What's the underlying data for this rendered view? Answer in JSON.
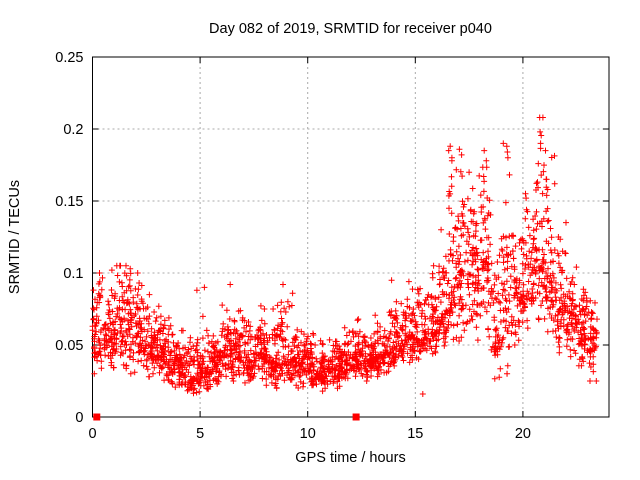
{
  "title": "Day 082 of 2019, SRMTID for receiver p040",
  "colors": {
    "marker": "#ff0000",
    "grid": "#a9a9a9",
    "axis": "#000000",
    "background": "#ffffff"
  },
  "chart_data": {
    "type": "scatter",
    "title": "Day 082 of 2019, SRMTID for receiver p040",
    "xlabel": "GPS time / hours",
    "ylabel": "SRMTID / TECUs",
    "xlim": [
      0,
      24
    ],
    "ylim": [
      0,
      0.25
    ],
    "x_ticks": [
      0,
      5,
      10,
      15,
      20
    ],
    "x_tick_labels": [
      "0",
      "5",
      "10",
      "15",
      "20"
    ],
    "y_ticks": [
      0,
      0.05,
      0.1,
      0.15,
      0.2,
      0.25
    ],
    "y_tick_labels": [
      "0",
      "0.05",
      "0.1",
      "0.15",
      "0.2",
      "0.25"
    ],
    "grid": true,
    "legend": "none",
    "series": [
      {
        "name": "srmtid-plus-markers",
        "marker": "plus",
        "color": "#ff0000",
        "density_bins": [
          [
            0.0,
            0.5,
            55,
            0.03,
            0.05,
            0.1
          ],
          [
            0.5,
            1.0,
            55,
            0.03,
            0.055,
            0.095
          ],
          [
            1.0,
            1.5,
            55,
            0.035,
            0.06,
            0.105
          ],
          [
            1.5,
            2.0,
            55,
            0.03,
            0.06,
            0.105
          ],
          [
            2.0,
            2.5,
            55,
            0.03,
            0.055,
            0.1
          ],
          [
            2.5,
            3.0,
            55,
            0.028,
            0.05,
            0.085
          ],
          [
            3.0,
            3.5,
            55,
            0.025,
            0.045,
            0.08
          ],
          [
            3.5,
            4.0,
            55,
            0.02,
            0.04,
            0.07
          ],
          [
            4.0,
            4.5,
            55,
            0.015,
            0.033,
            0.06
          ],
          [
            4.5,
            5.0,
            55,
            0.012,
            0.028,
            0.055
          ],
          [
            5.0,
            5.5,
            55,
            0.012,
            0.035,
            0.07
          ],
          [
            5.5,
            6.0,
            55,
            0.02,
            0.038,
            0.065
          ],
          [
            6.0,
            6.5,
            55,
            0.025,
            0.045,
            0.08
          ],
          [
            6.5,
            7.0,
            55,
            0.025,
            0.045,
            0.085
          ],
          [
            7.0,
            7.5,
            55,
            0.022,
            0.04,
            0.07
          ],
          [
            7.5,
            8.0,
            55,
            0.025,
            0.045,
            0.08
          ],
          [
            8.0,
            8.5,
            55,
            0.022,
            0.04,
            0.075
          ],
          [
            8.5,
            9.0,
            55,
            0.02,
            0.04,
            0.09
          ],
          [
            9.0,
            9.5,
            55,
            0.022,
            0.04,
            0.08
          ],
          [
            9.5,
            10.0,
            55,
            0.02,
            0.038,
            0.065
          ],
          [
            10.0,
            10.5,
            55,
            0.018,
            0.034,
            0.058
          ],
          [
            10.5,
            11.0,
            55,
            0.018,
            0.032,
            0.055
          ],
          [
            11.0,
            11.5,
            55,
            0.02,
            0.035,
            0.058
          ],
          [
            11.5,
            12.0,
            55,
            0.022,
            0.037,
            0.062
          ],
          [
            12.0,
            12.5,
            55,
            0.025,
            0.04,
            0.068
          ],
          [
            12.5,
            13.0,
            55,
            0.025,
            0.04,
            0.072
          ],
          [
            13.0,
            13.5,
            55,
            0.028,
            0.042,
            0.072
          ],
          [
            13.5,
            14.0,
            55,
            0.03,
            0.045,
            0.08
          ],
          [
            14.0,
            14.5,
            55,
            0.032,
            0.05,
            0.082
          ],
          [
            14.5,
            15.0,
            55,
            0.035,
            0.055,
            0.09
          ],
          [
            15.0,
            15.5,
            55,
            0.038,
            0.055,
            0.092
          ],
          [
            15.5,
            16.0,
            55,
            0.04,
            0.06,
            0.105
          ],
          [
            16.0,
            16.5,
            55,
            0.045,
            0.07,
            0.135
          ],
          [
            16.5,
            17.0,
            60,
            0.05,
            0.095,
            0.19
          ],
          [
            17.0,
            17.5,
            60,
            0.05,
            0.1,
            0.188
          ],
          [
            17.5,
            18.0,
            60,
            0.045,
            0.1,
            0.175
          ],
          [
            18.0,
            18.5,
            60,
            0.05,
            0.11,
            0.185
          ],
          [
            18.5,
            19.0,
            50,
            0.022,
            0.06,
            0.14
          ],
          [
            19.0,
            19.5,
            55,
            0.03,
            0.085,
            0.19
          ],
          [
            19.5,
            20.0,
            55,
            0.05,
            0.085,
            0.135
          ],
          [
            20.0,
            20.5,
            55,
            0.055,
            0.095,
            0.155
          ],
          [
            20.5,
            21.0,
            60,
            0.06,
            0.11,
            0.208
          ],
          [
            21.0,
            21.5,
            60,
            0.05,
            0.1,
            0.185
          ],
          [
            21.5,
            22.0,
            55,
            0.04,
            0.08,
            0.135
          ],
          [
            22.0,
            22.5,
            55,
            0.03,
            0.068,
            0.105
          ],
          [
            22.5,
            23.0,
            55,
            0.03,
            0.058,
            0.1
          ],
          [
            23.0,
            23.45,
            45,
            0.025,
            0.05,
            0.085
          ]
        ],
        "extra_points": [
          [
            0.9,
            0.102
          ],
          [
            1.3,
            0.105
          ],
          [
            1.75,
            0.103
          ],
          [
            2.1,
            0.1
          ],
          [
            4.85,
            0.088
          ],
          [
            5.2,
            0.09
          ],
          [
            6.4,
            0.092
          ],
          [
            8.85,
            0.092
          ],
          [
            9.3,
            0.086
          ],
          [
            12.35,
            0.068
          ],
          [
            13.9,
            0.095
          ],
          [
            14.7,
            0.094
          ],
          [
            15.35,
            0.016
          ],
          [
            16.2,
            0.13
          ],
          [
            16.55,
            0.185
          ],
          [
            16.62,
            0.188
          ],
          [
            16.7,
            0.18
          ],
          [
            17.05,
            0.186
          ],
          [
            17.15,
            0.182
          ],
          [
            17.5,
            0.17
          ],
          [
            18.2,
            0.185
          ],
          [
            18.3,
            0.178
          ],
          [
            19.25,
            0.188
          ],
          [
            19.3,
            0.18
          ],
          [
            20.15,
            0.152
          ],
          [
            20.78,
            0.208
          ],
          [
            20.8,
            0.198
          ],
          [
            20.82,
            0.19
          ],
          [
            20.85,
            0.168
          ],
          [
            21.05,
            0.185
          ],
          [
            21.1,
            0.165
          ],
          [
            21.15,
            0.158
          ],
          [
            22.0,
            0.135
          ]
        ]
      },
      {
        "name": "zero-value-square-markers",
        "marker": "filled-square",
        "color": "#ff0000",
        "points": [
          [
            0.2,
            0
          ],
          [
            12.25,
            0
          ]
        ]
      }
    ]
  }
}
